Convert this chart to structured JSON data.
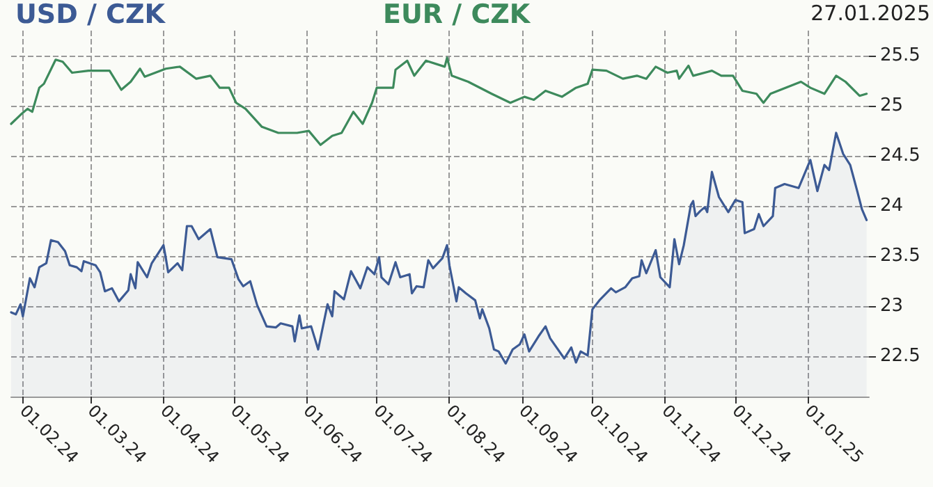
{
  "chart_data": {
    "type": "line",
    "legend": "top",
    "grid": true,
    "marker": "none",
    "line_style": "solid",
    "annotations": [
      "27.01.2025"
    ],
    "xlim": [
      "2024-01-27",
      "2025-01-27"
    ],
    "xticks": [
      {
        "value": "2024-02-01",
        "label": "01.02.24"
      },
      {
        "value": "2024-03-01",
        "label": "01.03.24"
      },
      {
        "value": "2024-04-01",
        "label": "01.04.24"
      },
      {
        "value": "2024-05-01",
        "label": "01.05.24"
      },
      {
        "value": "2024-06-01",
        "label": "01.06.24"
      },
      {
        "value": "2024-07-01",
        "label": "01.07.24"
      },
      {
        "value": "2024-08-01",
        "label": "01.08.24"
      },
      {
        "value": "2024-09-01",
        "label": "01.09.24"
      },
      {
        "value": "2024-10-01",
        "label": "01.10.24"
      },
      {
        "value": "2024-11-01",
        "label": "01.11.24"
      },
      {
        "value": "2024-12-01",
        "label": "01.12.24"
      },
      {
        "value": "2025-01-01",
        "label": "01.01.25"
      }
    ],
    "ylim": [
      22.1,
      25.75
    ],
    "yticks": [
      22.5,
      23,
      23.5,
      24,
      24.5,
      25,
      25.5
    ],
    "series": [
      {
        "name": "USD / CZK",
        "type": "area",
        "color": "#3c5a94",
        "x": [
          "2024-01-27",
          "2024-01-29",
          "2024-01-31",
          "2024-02-01",
          "2024-02-04",
          "2024-02-06",
          "2024-02-08",
          "2024-02-11",
          "2024-02-13",
          "2024-02-16",
          "2024-02-19",
          "2024-02-21",
          "2024-02-24",
          "2024-02-26",
          "2024-02-27",
          "2024-03-03",
          "2024-03-05",
          "2024-03-07",
          "2024-03-10",
          "2024-03-13",
          "2024-03-17",
          "2024-03-18",
          "2024-03-20",
          "2024-03-21",
          "2024-03-25",
          "2024-03-27",
          "2024-04-01",
          "2024-04-02",
          "2024-04-03",
          "2024-04-07",
          "2024-04-09",
          "2024-04-11",
          "2024-04-13",
          "2024-04-16",
          "2024-04-21",
          "2024-04-24",
          "2024-04-30",
          "2024-05-03",
          "2024-05-05",
          "2024-05-08",
          "2024-05-11",
          "2024-05-15",
          "2024-05-19",
          "2024-05-21",
          "2024-05-26",
          "2024-05-27",
          "2024-05-29",
          "2024-05-30",
          "2024-06-03",
          "2024-06-06",
          "2024-06-10",
          "2024-06-12",
          "2024-06-13",
          "2024-06-17",
          "2024-06-20",
          "2024-06-24",
          "2024-06-27",
          "2024-06-30",
          "2024-07-02",
          "2024-07-03",
          "2024-07-06",
          "2024-07-09",
          "2024-07-11",
          "2024-07-15",
          "2024-07-16",
          "2024-07-18",
          "2024-07-21",
          "2024-07-23",
          "2024-07-25",
          "2024-07-29",
          "2024-07-31",
          "2024-08-01",
          "2024-08-04",
          "2024-08-05",
          "2024-08-08",
          "2024-08-12",
          "2024-08-14",
          "2024-08-15",
          "2024-08-18",
          "2024-08-20",
          "2024-08-22",
          "2024-08-25",
          "2024-08-28",
          "2024-08-31",
          "2024-09-02",
          "2024-09-04",
          "2024-09-08",
          "2024-09-11",
          "2024-09-13",
          "2024-09-19",
          "2024-09-22",
          "2024-09-24",
          "2024-09-26",
          "2024-09-29",
          "2024-10-01",
          "2024-10-04",
          "2024-10-09",
          "2024-10-11",
          "2024-10-15",
          "2024-10-18",
          "2024-10-21",
          "2024-10-22",
          "2024-10-24",
          "2024-10-28",
          "2024-10-30",
          "2024-11-03",
          "2024-11-05",
          "2024-11-07",
          "2024-11-09",
          "2024-11-12",
          "2024-11-13",
          "2024-11-14",
          "2024-11-16",
          "2024-11-18",
          "2024-11-19",
          "2024-11-21",
          "2024-11-24",
          "2024-11-28",
          "2024-12-01",
          "2024-12-04",
          "2024-12-05",
          "2024-12-09",
          "2024-12-11",
          "2024-12-13",
          "2024-12-17",
          "2024-12-18",
          "2024-12-22",
          "2024-12-28",
          "2025-01-02",
          "2025-01-05",
          "2025-01-08",
          "2025-01-10",
          "2025-01-13",
          "2025-01-16",
          "2025-01-19",
          "2025-01-22",
          "2025-01-24",
          "2025-01-26"
        ],
        "values": [
          22.94,
          22.92,
          23.02,
          22.9,
          23.28,
          23.19,
          23.39,
          23.43,
          23.66,
          23.64,
          23.55,
          23.41,
          23.39,
          23.35,
          23.45,
          23.41,
          23.34,
          23.15,
          23.18,
          23.05,
          23.16,
          23.32,
          23.18,
          23.44,
          23.29,
          23.43,
          23.61,
          23.48,
          23.34,
          23.43,
          23.36,
          23.8,
          23.8,
          23.67,
          23.77,
          23.49,
          23.47,
          23.27,
          23.2,
          23.25,
          23.01,
          22.8,
          22.79,
          22.83,
          22.8,
          22.65,
          22.91,
          22.78,
          22.8,
          22.57,
          23.02,
          22.9,
          23.15,
          23.07,
          23.35,
          23.18,
          23.39,
          23.32,
          23.49,
          23.29,
          23.22,
          23.44,
          23.29,
          23.32,
          23.13,
          23.2,
          23.19,
          23.46,
          23.38,
          23.48,
          23.61,
          23.41,
          23.05,
          23.19,
          23.13,
          23.06,
          22.88,
          22.97,
          22.78,
          22.57,
          22.55,
          22.43,
          22.57,
          22.62,
          22.72,
          22.55,
          22.7,
          22.8,
          22.68,
          22.48,
          22.59,
          22.44,
          22.55,
          22.51,
          22.97,
          23.06,
          23.18,
          23.14,
          23.19,
          23.28,
          23.3,
          23.46,
          23.33,
          23.56,
          23.29,
          23.19,
          23.67,
          23.42,
          23.61,
          24.01,
          24.05,
          23.9,
          23.95,
          23.99,
          23.94,
          24.34,
          24.09,
          23.94,
          24.06,
          24.04,
          23.73,
          23.77,
          23.92,
          23.8,
          23.9,
          24.18,
          24.22,
          24.18,
          24.46,
          24.15,
          24.41,
          24.36,
          24.73,
          24.52,
          24.41,
          24.15,
          23.97,
          23.86
        ]
      },
      {
        "name": "EUR / CZK",
        "color": "#3d8a5c",
        "x": [
          "2024-01-27",
          "2024-01-31",
          "2024-02-03",
          "2024-02-05",
          "2024-02-08",
          "2024-02-10",
          "2024-02-15",
          "2024-02-18",
          "2024-02-22",
          "2024-02-29",
          "2024-03-09",
          "2024-03-14",
          "2024-03-18",
          "2024-03-22",
          "2024-03-24",
          "2024-04-02",
          "2024-04-08",
          "2024-04-15",
          "2024-04-21",
          "2024-04-25",
          "2024-04-29",
          "2024-05-02",
          "2024-05-06",
          "2024-05-13",
          "2024-05-20",
          "2024-05-28",
          "2024-06-02",
          "2024-06-07",
          "2024-06-12",
          "2024-06-16",
          "2024-06-21",
          "2024-06-25",
          "2024-06-29",
          "2024-07-01",
          "2024-07-08",
          "2024-07-09",
          "2024-07-14",
          "2024-07-17",
          "2024-07-22",
          "2024-07-30",
          "2024-07-31",
          "2024-08-02",
          "2024-08-09",
          "2024-08-19",
          "2024-08-27",
          "2024-09-02",
          "2024-09-06",
          "2024-09-11",
          "2024-09-18",
          "2024-09-24",
          "2024-09-29",
          "2024-10-01",
          "2024-10-07",
          "2024-10-14",
          "2024-10-20",
          "2024-10-24",
          "2024-10-28",
          "2024-11-02",
          "2024-11-06",
          "2024-11-07",
          "2024-11-11",
          "2024-11-13",
          "2024-11-21",
          "2024-11-25",
          "2024-11-30",
          "2024-12-04",
          "2024-12-10",
          "2024-12-13",
          "2024-12-16",
          "2024-12-29",
          "2025-01-02",
          "2025-01-08",
          "2025-01-13",
          "2025-01-17",
          "2025-01-23",
          "2025-01-26"
        ],
        "values": [
          24.82,
          24.91,
          24.97,
          24.94,
          25.18,
          25.22,
          25.46,
          25.44,
          25.33,
          25.35,
          25.35,
          25.16,
          25.24,
          25.37,
          25.29,
          25.37,
          25.39,
          25.27,
          25.3,
          25.18,
          25.18,
          25.03,
          24.97,
          24.79,
          24.73,
          24.73,
          24.75,
          24.61,
          24.7,
          24.73,
          24.94,
          24.82,
          25.03,
          25.18,
          25.18,
          25.36,
          25.45,
          25.3,
          25.45,
          25.39,
          25.48,
          25.3,
          25.24,
          25.12,
          25.03,
          25.09,
          25.06,
          25.15,
          25.09,
          25.18,
          25.22,
          25.36,
          25.35,
          25.27,
          25.3,
          25.27,
          25.39,
          25.33,
          25.35,
          25.27,
          25.4,
          25.3,
          25.35,
          25.3,
          25.3,
          25.15,
          25.12,
          25.03,
          25.12,
          25.24,
          25.18,
          25.12,
          25.3,
          25.24,
          25.1,
          25.12
        ]
      }
    ]
  }
}
